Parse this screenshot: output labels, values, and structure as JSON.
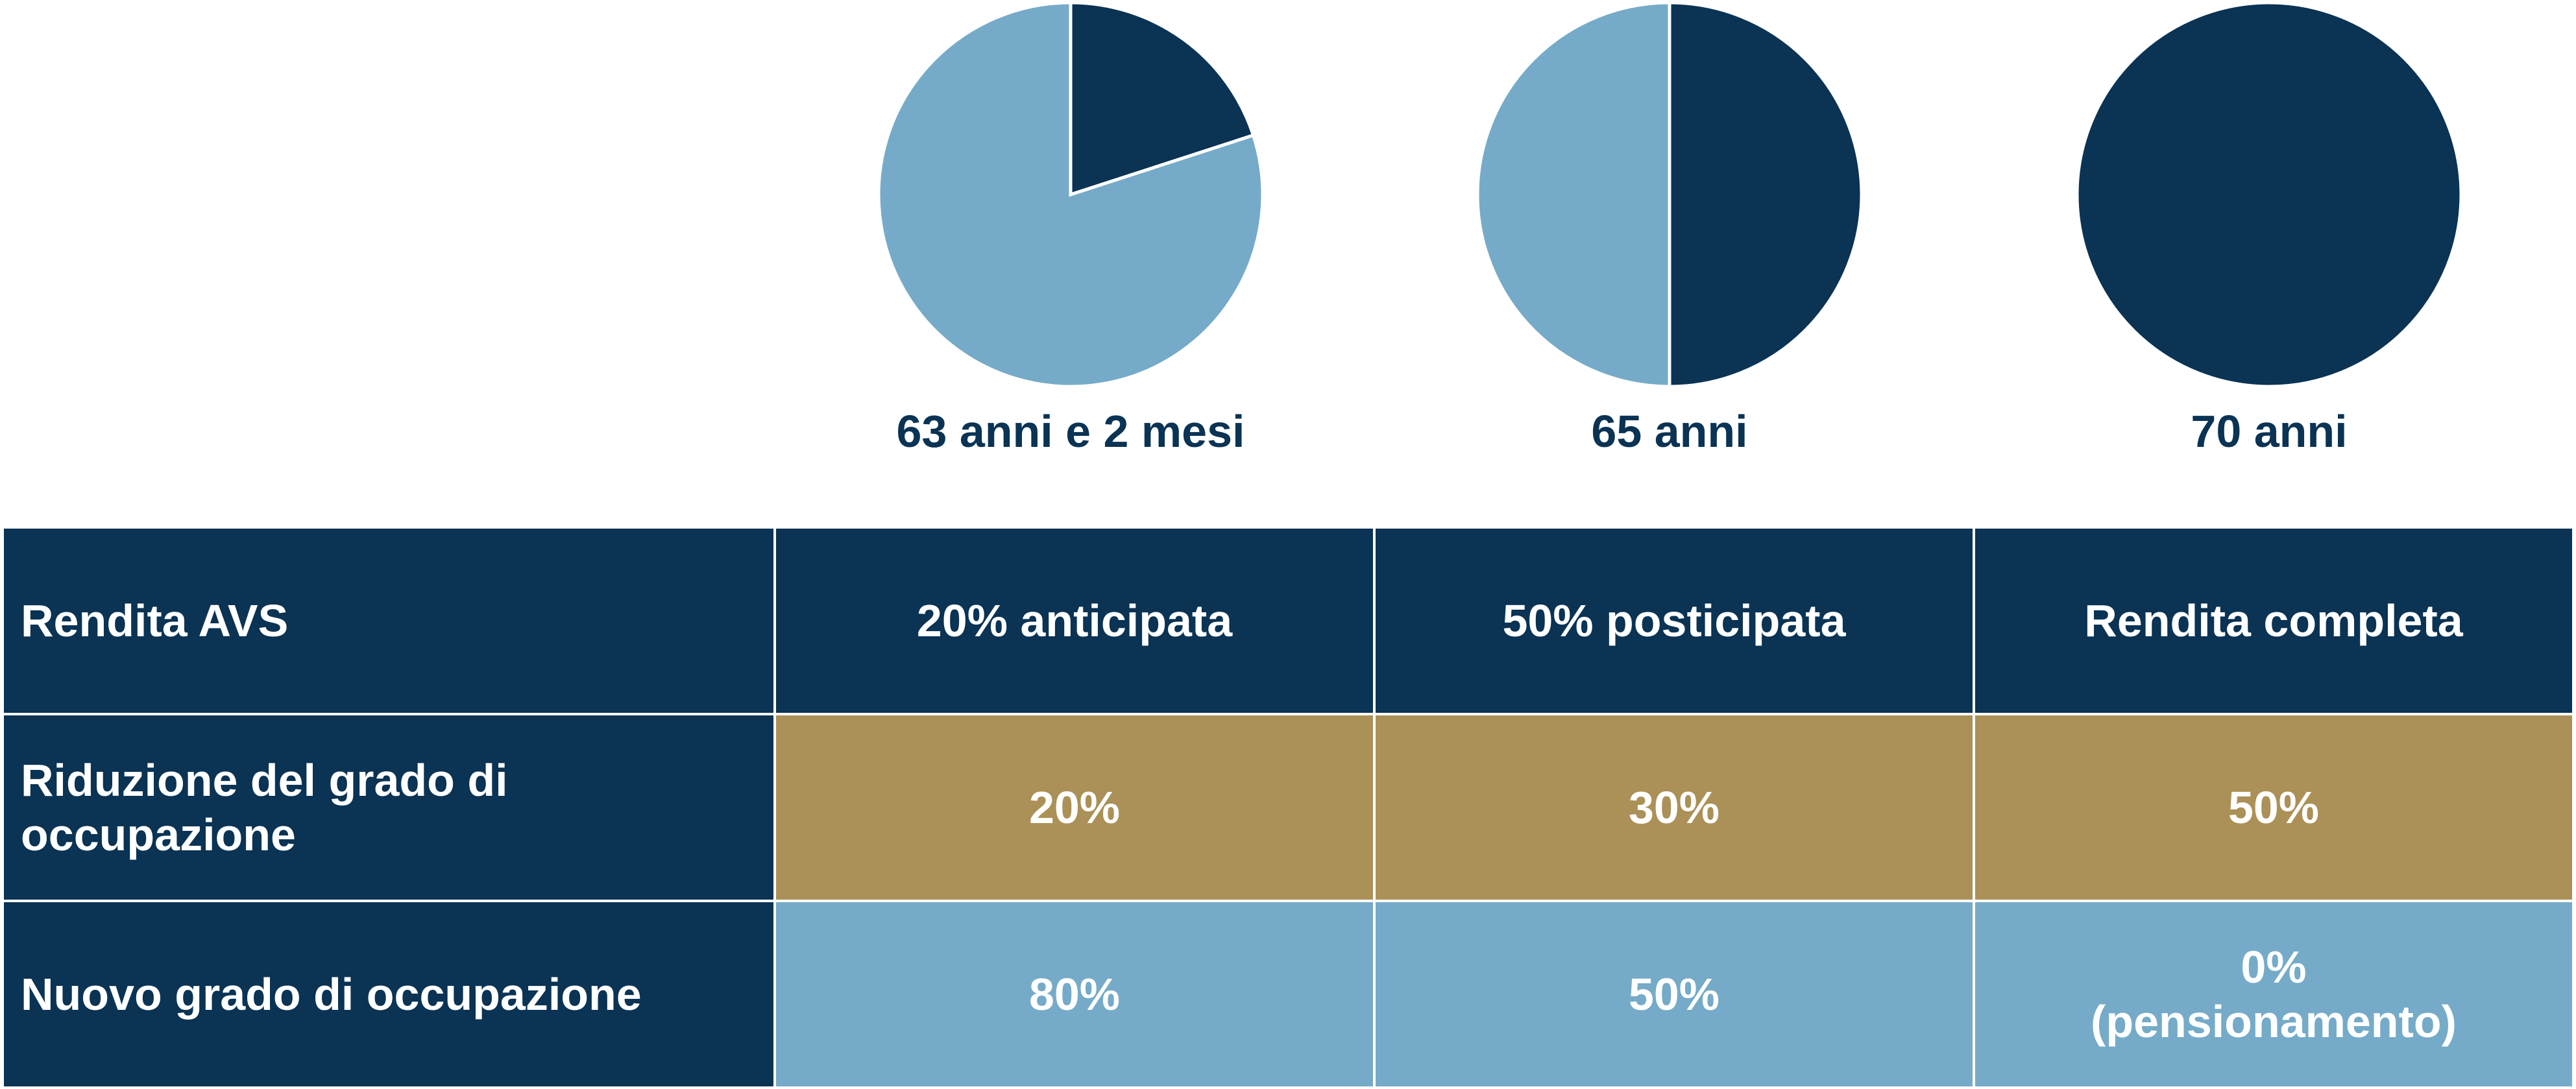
{
  "colors": {
    "dark": "#0a3354",
    "light": "#75abc8",
    "gold": "#ab9157"
  },
  "chart_data": {
    "type": "pie",
    "pies": [
      {
        "label": "63 anni e 2 mesi",
        "slices": [
          {
            "value": 20,
            "color": "#0a3354"
          },
          {
            "value": 80,
            "color": "#75abc8"
          }
        ]
      },
      {
        "label": "65 anni",
        "slices": [
          {
            "value": 50,
            "color": "#0a3354"
          },
          {
            "value": 50,
            "color": "#75abc8"
          }
        ]
      },
      {
        "label": "70 anni",
        "slices": [
          {
            "value": 100,
            "color": "#0a3354"
          }
        ]
      }
    ]
  },
  "table": {
    "rows": [
      {
        "header": "Rendita AVS",
        "cells": [
          "20% anticipata",
          "50% posticipata",
          "Rendita completa"
        ]
      },
      {
        "header": "Riduzione del grado di occupazione",
        "cells": [
          "20%",
          "30%",
          "50%"
        ]
      },
      {
        "header": "Nuovo grado di occupazione",
        "cells": [
          "80%",
          "50%",
          "0%\n(pensionamento)"
        ]
      }
    ]
  }
}
